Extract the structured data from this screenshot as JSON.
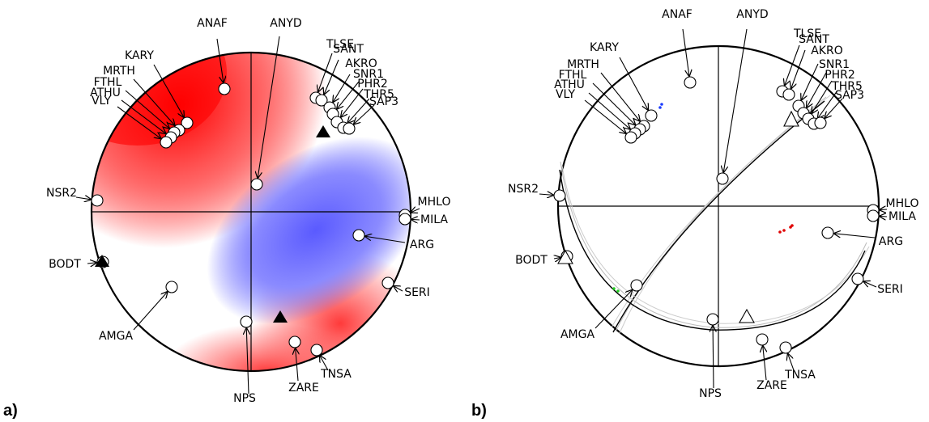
{
  "figure": {
    "panel_a": {
      "label": "a)",
      "stations": [
        "ANAF",
        "ANYD",
        "KARY",
        "MRTH",
        "FTHL",
        "ATHU",
        "VLY",
        "TLSE",
        "SANT",
        "AKRO",
        "SNR1",
        "PHR2",
        "THR5",
        "SAP3",
        "NSR2",
        "MHLO",
        "MILA",
        "ARG",
        "BODT",
        "SERI",
        "AMGA",
        "NPS",
        "ZARE",
        "TNSA"
      ],
      "p_axis_marker": "filled-triangle",
      "compression_color": "#ff0000",
      "dilatation_color": "#5a5aff"
    },
    "panel_b": {
      "label": "b)",
      "stations": [
        "ANAF",
        "ANYD",
        "KARY",
        "MRTH",
        "FTHL",
        "ATHU",
        "VLY",
        "TLSE",
        "SANT",
        "AKRO",
        "SNR1",
        "PHR2",
        "THR5",
        "SAP3",
        "NSR2",
        "MHLO",
        "MILA",
        "ARG",
        "BODT",
        "SERI",
        "AMGA",
        "NPS",
        "ZARE",
        "TNSA"
      ],
      "p_axis_marker": "open-triangle",
      "blue_dot_color": "#1a3cff",
      "red_dot_color": "#e00000",
      "green_dot_color": "#22cc22"
    }
  }
}
